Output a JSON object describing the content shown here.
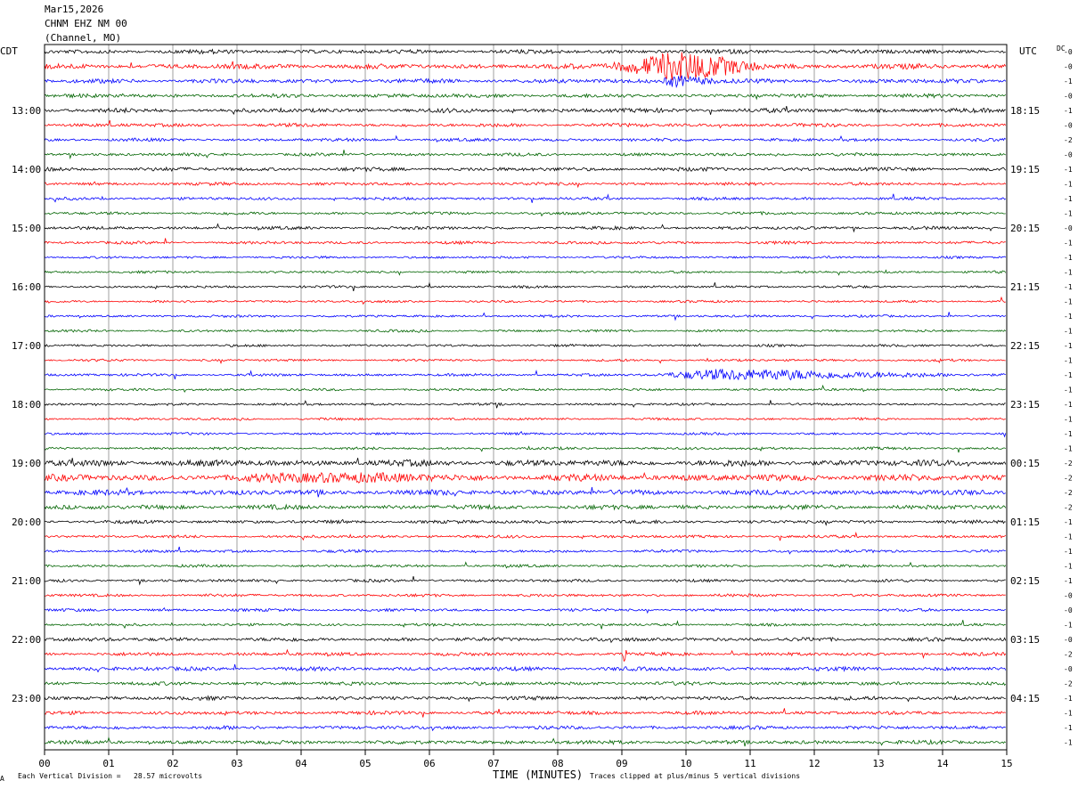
{
  "header": {
    "date": "Mar15,2026",
    "station": "CHNM EHZ NM 00",
    "channel": "(Channel, MO)",
    "left_zone": "CDT",
    "right_zone": "UTC",
    "dc_label": "DC"
  },
  "footer": {
    "scale_note": "Each Vertical Division =   28.57 microvolts",
    "clip_note": "Traces clipped at plus/minus 5 vertical divisions",
    "corner_mark": "A"
  },
  "colors": {
    "trace_cycle": [
      "#000000",
      "#ff0000",
      "#0000ff",
      "#006400"
    ],
    "grid": "#888888"
  },
  "chart_data": {
    "type": "line",
    "title": "",
    "xlabel": "TIME (MINUTES)",
    "ylabel": "",
    "xlim": [
      0,
      15
    ],
    "x_ticks": [
      "00",
      "01",
      "02",
      "03",
      "04",
      "05",
      "06",
      "07",
      "08",
      "09",
      "10",
      "11",
      "12",
      "13",
      "14",
      "15"
    ],
    "traces_per_hour": 4,
    "left_hour_labels": [
      "13:00",
      "14:00",
      "15:00",
      "16:00",
      "17:00",
      "18:00",
      "19:00",
      "20:00",
      "21:00",
      "22:00",
      "23:00"
    ],
    "right_hour_labels": [
      "18:15",
      "19:15",
      "20:15",
      "21:15",
      "22:15",
      "23:15",
      "00:15",
      "01:15",
      "02:15",
      "03:15",
      "04:15"
    ],
    "dc_offsets": [
      "-0",
      "-0",
      "-1",
      "-0",
      "-1",
      "-0",
      "-2",
      "-0",
      "-1",
      "-1",
      "-1",
      "-1",
      "-0",
      "-1",
      "-1",
      "-1",
      "-1",
      "-1",
      "-1",
      "-1",
      "-1",
      "-1",
      "-1",
      "-1",
      "-1",
      "-1",
      "-1",
      "-1",
      "-2",
      "-2",
      "-2",
      "-2",
      "-1",
      "-1",
      "-1",
      "-1",
      "-1",
      "-0",
      "-0",
      "-1",
      "-0",
      "-2",
      "-0",
      "-2",
      "-1",
      "-1",
      "-1",
      "-1"
    ],
    "amplitude_profile": [
      1.7,
      2.1,
      1.8,
      1.6,
      1.8,
      1.5,
      1.3,
      1.3,
      1.6,
      1.3,
      1.2,
      1.2,
      1.3,
      1.2,
      1.0,
      1.0,
      1.0,
      1.0,
      1.0,
      1.0,
      1.0,
      1.0,
      1.1,
      1.0,
      1.0,
      1.0,
      1.0,
      1.1,
      2.6,
      2.8,
      2.2,
      1.9,
      1.4,
      1.2,
      1.2,
      1.1,
      1.2,
      1.2,
      1.2,
      1.1,
      1.6,
      1.4,
      1.7,
      1.5,
      1.6,
      1.5,
      1.5,
      1.6
    ],
    "events": [
      {
        "trace": 1,
        "start_min": 8.7,
        "end_min": 11.3,
        "peak_min": 9.9,
        "amp": 16
      },
      {
        "trace": 2,
        "start_min": 9.6,
        "end_min": 10.6,
        "peak_min": 9.8,
        "amp": 6
      },
      {
        "trace": 22,
        "start_min": 9.5,
        "end_min": 14.5,
        "peak_min": 10.5,
        "amp": 6
      },
      {
        "trace": 29,
        "start_min": 3.0,
        "end_min": 6.5,
        "peak_min": 4.3,
        "amp": 4
      },
      {
        "trace": 41,
        "start_min": 9.0,
        "end_min": 9.1,
        "peak_min": 9.02,
        "amp": 8
      }
    ]
  }
}
